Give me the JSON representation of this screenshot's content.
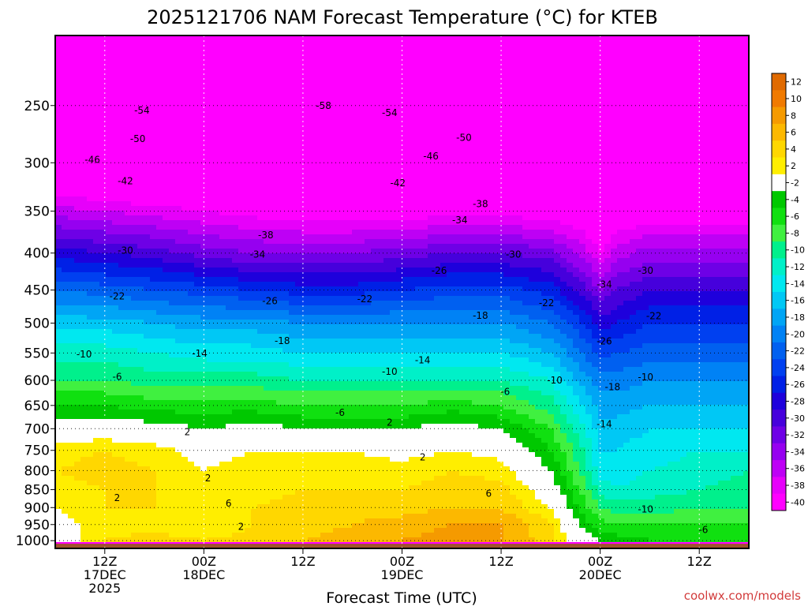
{
  "chart_data": {
    "type": "heatmap",
    "title": "2025121706 NAM Forecast Temperature (°C) for KTEB",
    "xlabel": "Forecast Time (UTC)",
    "ylabel": "",
    "y_axis": {
      "scale": "log",
      "reversed": true,
      "ylim": [
        1025,
        200
      ],
      "ticks": [
        250,
        300,
        350,
        400,
        450,
        500,
        550,
        600,
        650,
        700,
        750,
        800,
        850,
        900,
        950,
        1000
      ]
    },
    "x_axis": {
      "xlim_hours": [
        0,
        84
      ],
      "ticks": [
        {
          "hour": 6,
          "line1": "12Z",
          "line2": "17DEC",
          "line3": "2025"
        },
        {
          "hour": 18,
          "line1": "00Z",
          "line2": "18DEC",
          "line3": ""
        },
        {
          "hour": 30,
          "line1": "12Z",
          "line2": "",
          "line3": ""
        },
        {
          "hour": 42,
          "line1": "00Z",
          "line2": "19DEC",
          "line3": ""
        },
        {
          "hour": 54,
          "line1": "12Z",
          "line2": "",
          "line3": ""
        },
        {
          "hour": 66,
          "line1": "00Z",
          "line2": "20DEC",
          "line3": ""
        },
        {
          "hour": 78,
          "line1": "12Z",
          "line2": "",
          "line3": ""
        }
      ]
    },
    "grid": true,
    "colorbar": {
      "placement": "right",
      "levels": [
        12,
        10,
        8,
        6,
        4,
        2,
        -2,
        -4,
        -6,
        -8,
        -10,
        -12,
        -14,
        -16,
        -18,
        -20,
        -22,
        -24,
        -26,
        -28,
        -30,
        -32,
        -34,
        -36,
        -38,
        -40
      ],
      "colors": [
        "#e06a00",
        "#f07a00",
        "#f59a00",
        "#fcb800",
        "#ffd700",
        "#ffee00",
        "#ffffff",
        "#00c800",
        "#10e010",
        "#40f040",
        "#00f08c",
        "#00f0c8",
        "#00e8f0",
        "#00c8f5",
        "#00a5f5",
        "#0082f5",
        "#0060f0",
        "#0040f0",
        "#0020e6",
        "#1e00dc",
        "#4600dc",
        "#6e00e6",
        "#9600f0",
        "#be00f5",
        "#e600fa",
        "#ff00ff"
      ]
    },
    "temperature_profile": {
      "pressure_hpa": [
        1000,
        950,
        900,
        850,
        800,
        750,
        700,
        650,
        600,
        550,
        500,
        450,
        400,
        350,
        300,
        250,
        200
      ],
      "hours": [
        0,
        6,
        12,
        18,
        24,
        30,
        36,
        42,
        48,
        54,
        60,
        64,
        66,
        68,
        72,
        78,
        84
      ],
      "values": [
        [
          0,
          4,
          5,
          4,
          5,
          6,
          7,
          8,
          9,
          8,
          5,
          0,
          -2,
          -3,
          -4,
          -5,
          -5
        ],
        [
          1,
          3,
          3,
          2,
          4,
          5,
          6,
          7,
          8,
          8,
          4,
          -3,
          -5,
          -6,
          -6,
          -6,
          -6
        ],
        [
          2,
          4,
          4,
          3,
          4,
          5,
          5,
          5,
          6,
          6,
          2,
          -5,
          -8,
          -9,
          -9,
          -8,
          -8
        ],
        [
          3,
          4,
          4,
          3,
          3,
          4,
          4,
          4,
          5,
          5,
          0,
          -7,
          -11,
          -12,
          -11,
          -10,
          -9
        ],
        [
          4,
          5,
          4,
          2,
          3,
          3,
          3,
          3,
          4,
          3,
          -2,
          -9,
          -13,
          -13,
          -12,
          -11,
          -10
        ],
        [
          3,
          4,
          3,
          1,
          2,
          2,
          2,
          1,
          2,
          1,
          -4,
          -10,
          -14,
          -14,
          -13,
          -12,
          -12
        ],
        [
          0,
          0,
          -1,
          -2,
          -1,
          -2,
          -2,
          -2,
          -1,
          -2,
          -6,
          -12,
          -15,
          -15,
          -14,
          -14,
          -14
        ],
        [
          -4,
          -4,
          -5,
          -5,
          -5,
          -6,
          -6,
          -6,
          -5,
          -6,
          -9,
          -14,
          -17,
          -17,
          -16,
          -16,
          -16
        ],
        [
          -8,
          -8,
          -9,
          -9,
          -9,
          -10,
          -10,
          -10,
          -10,
          -10,
          -12,
          -17,
          -19,
          -19,
          -18,
          -18,
          -18
        ],
        [
          -11,
          -11,
          -12,
          -13,
          -13,
          -14,
          -14,
          -14,
          -14,
          -14,
          -16,
          -20,
          -23,
          -22,
          -21,
          -21,
          -21
        ],
        [
          -15,
          -15,
          -16,
          -17,
          -17,
          -18,
          -18,
          -18,
          -18,
          -18,
          -20,
          -24,
          -27,
          -26,
          -24,
          -24,
          -24
        ],
        [
          -20,
          -21,
          -22,
          -23,
          -24,
          -25,
          -25,
          -24,
          -23,
          -23,
          -25,
          -29,
          -32,
          -30,
          -28,
          -28,
          -28
        ],
        [
          -27,
          -28,
          -29,
          -31,
          -32,
          -32,
          -32,
          -31,
          -30,
          -30,
          -31,
          -35,
          -38,
          -35,
          -33,
          -33,
          -33
        ],
        [
          -35,
          -36,
          -37,
          -38,
          -39,
          -40,
          -40,
          -40,
          -39,
          -39,
          -40,
          -41,
          -43,
          -41,
          -40,
          -40,
          -40
        ],
        [
          -45,
          -45,
          -46,
          -46,
          -47,
          -47,
          -47,
          -47,
          -47,
          -47,
          -47,
          -46,
          -46,
          -47,
          -47,
          -47,
          -47
        ],
        [
          -54,
          -54,
          -55,
          -56,
          -57,
          -57,
          -57,
          -56,
          -55,
          -53,
          -52,
          -51,
          -50,
          -51,
          -52,
          -53,
          -53
        ],
        [
          -60,
          -60,
          -61,
          -62,
          -63,
          -63,
          -62,
          -61,
          -60,
          -58,
          -57,
          -56,
          -55,
          -56,
          -57,
          -58,
          -58
        ]
      ]
    },
    "contour_labels": [
      {
        "text": "-54",
        "hour": 10.5,
        "p": 254
      },
      {
        "text": "-58",
        "hour": 32.5,
        "p": 250
      },
      {
        "text": "-54",
        "hour": 40.5,
        "p": 256
      },
      {
        "text": "-50",
        "hour": 10,
        "p": 278
      },
      {
        "text": "-50",
        "hour": 49.5,
        "p": 277
      },
      {
        "text": "-46",
        "hour": 4.5,
        "p": 297
      },
      {
        "text": "-46",
        "hour": 45.5,
        "p": 294
      },
      {
        "text": "-42",
        "hour": 8.5,
        "p": 318
      },
      {
        "text": "-42",
        "hour": 41.5,
        "p": 320
      },
      {
        "text": "-38",
        "hour": 51.5,
        "p": 342
      },
      {
        "text": "-34",
        "hour": 49,
        "p": 360
      },
      {
        "text": "-38",
        "hour": 25.5,
        "p": 378
      },
      {
        "text": "-30",
        "hour": 8.5,
        "p": 397
      },
      {
        "text": "-34",
        "hour": 24.5,
        "p": 402
      },
      {
        "text": "-30",
        "hour": 55.5,
        "p": 402
      },
      {
        "text": "-30",
        "hour": 71.5,
        "p": 423
      },
      {
        "text": "-26",
        "hour": 46.5,
        "p": 423
      },
      {
        "text": "-34",
        "hour": 66.5,
        "p": 442
      },
      {
        "text": "-22",
        "hour": 7.5,
        "p": 459
      },
      {
        "text": "-26",
        "hour": 26,
        "p": 466
      },
      {
        "text": "-22",
        "hour": 37.5,
        "p": 463
      },
      {
        "text": "-22",
        "hour": 59.5,
        "p": 469
      },
      {
        "text": "-18",
        "hour": 51.5,
        "p": 488
      },
      {
        "text": "-22",
        "hour": 72.5,
        "p": 489
      },
      {
        "text": "-18",
        "hour": 27.5,
        "p": 529
      },
      {
        "text": "-26",
        "hour": 66.5,
        "p": 530
      },
      {
        "text": "-10",
        "hour": 3.5,
        "p": 552
      },
      {
        "text": "-14",
        "hour": 17.5,
        "p": 551
      },
      {
        "text": "-14",
        "hour": 44.5,
        "p": 563
      },
      {
        "text": "-10",
        "hour": 40.5,
        "p": 584
      },
      {
        "text": "-6",
        "hour": 7.5,
        "p": 593
      },
      {
        "text": "-10",
        "hour": 60.5,
        "p": 600
      },
      {
        "text": "-10",
        "hour": 71.5,
        "p": 594
      },
      {
        "text": "-18",
        "hour": 67.5,
        "p": 613
      },
      {
        "text": "-6",
        "hour": 54.5,
        "p": 622
      },
      {
        "text": "-6",
        "hour": 34.5,
        "p": 665
      },
      {
        "text": "-14",
        "hour": 66.5,
        "p": 690
      },
      {
        "text": "2",
        "hour": 40.5,
        "p": 686
      },
      {
        "text": "2",
        "hour": 16,
        "p": 707
      },
      {
        "text": "2",
        "hour": 44.5,
        "p": 767
      },
      {
        "text": "2",
        "hour": 18.5,
        "p": 820
      },
      {
        "text": "6",
        "hour": 52.5,
        "p": 861
      },
      {
        "text": "2",
        "hour": 7.5,
        "p": 873
      },
      {
        "text": "6",
        "hour": 21,
        "p": 888
      },
      {
        "text": "-10",
        "hour": 71.5,
        "p": 905
      },
      {
        "text": "2",
        "hour": 22.5,
        "p": 956
      },
      {
        "text": "-6",
        "hour": 78.5,
        "p": 966
      }
    ],
    "credit": "coolwx.com/models"
  }
}
